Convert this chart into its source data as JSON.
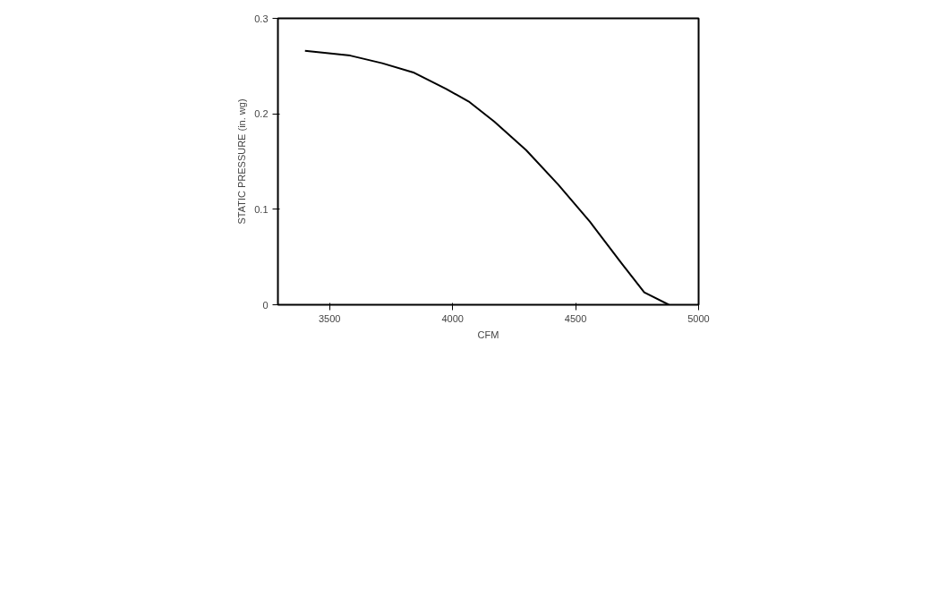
{
  "chart_data": {
    "type": "line",
    "xlabel": "CFM",
    "ylabel": "STATIC PRESSURE (in. wg)",
    "x": [
      3400,
      3584,
      3714,
      3844,
      3974,
      4065,
      4169,
      4299,
      4429,
      4558,
      4688,
      4779,
      4879
    ],
    "series": [
      {
        "color": "#000000",
        "values": [
          0.266,
          0.261,
          0.253,
          0.243,
          0.226,
          0.213,
          0.192,
          0.162,
          0.126,
          0.087,
          0.043,
          0.013,
          0
        ]
      }
    ],
    "xlim": [
      3290,
      5000
    ],
    "xticks": [
      3500,
      4000,
      4500,
      5000
    ],
    "ylim": [
      0,
      0.3
    ],
    "yticks": [
      0,
      0.1,
      0.2,
      0.3
    ],
    "grid": false,
    "marker": "none",
    "line_style": "solid"
  }
}
